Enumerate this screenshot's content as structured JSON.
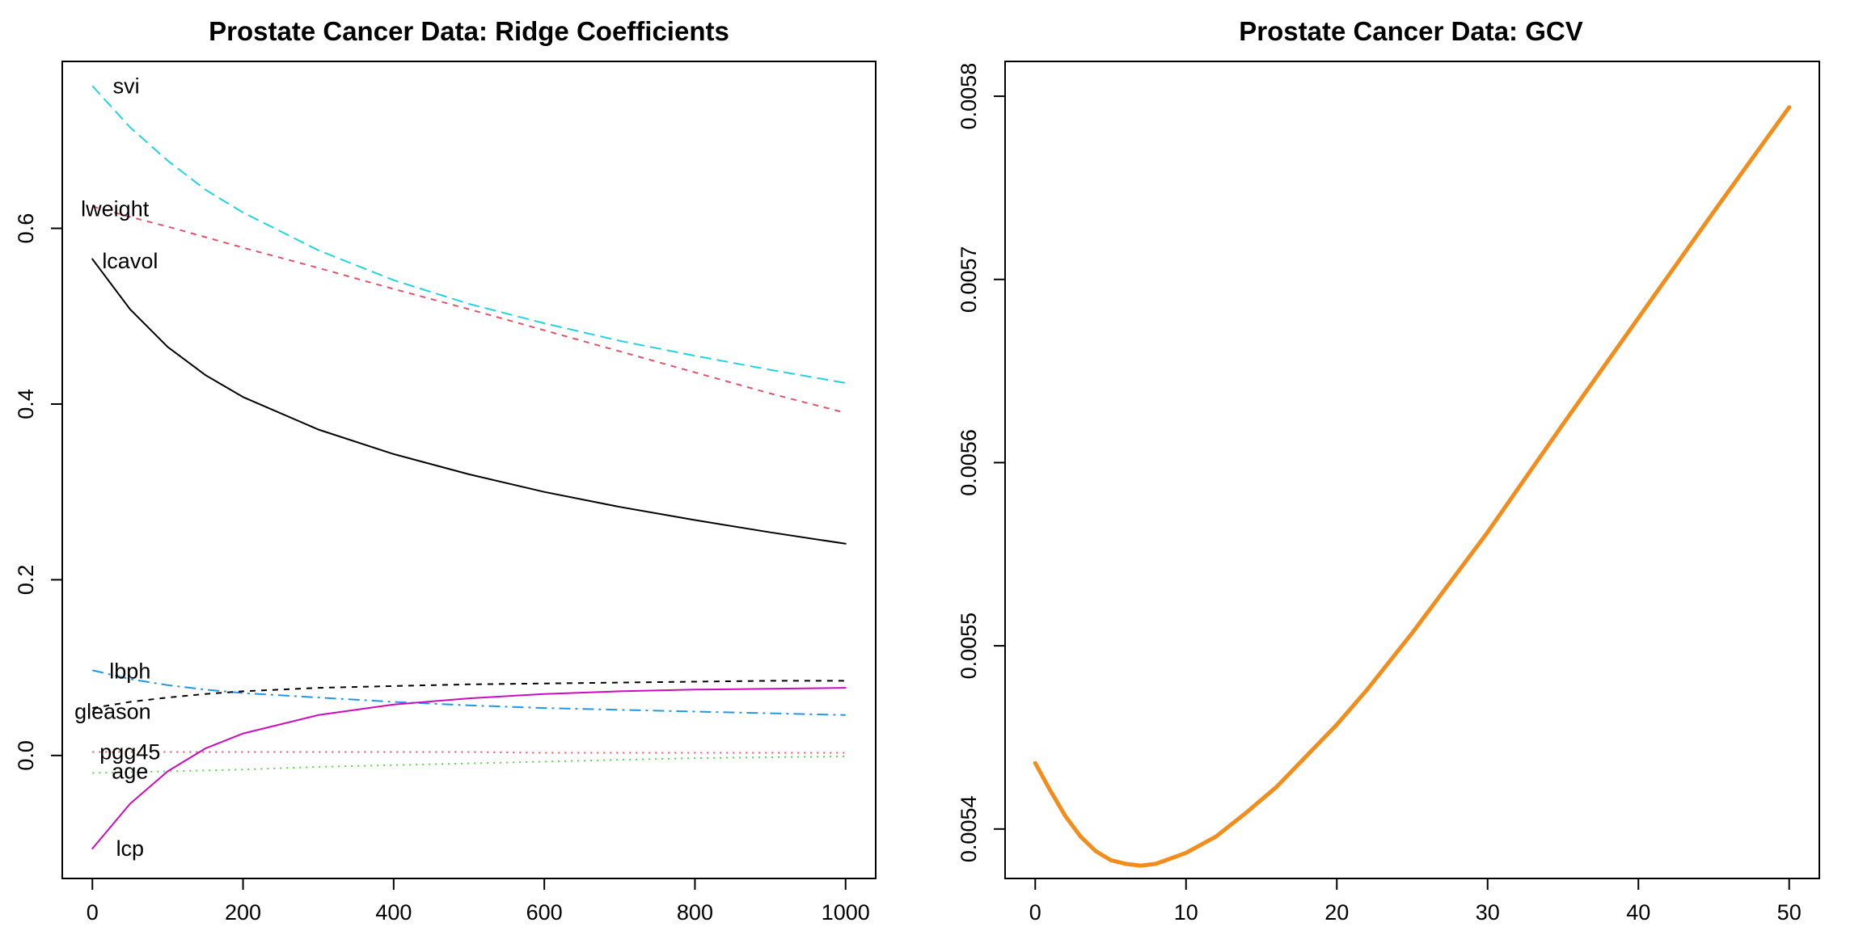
{
  "chart_data": [
    {
      "type": "line",
      "title": "Prostate Cancer Data: Ridge Coefficients",
      "xlabel": "",
      "ylabel": "",
      "xlim": [
        -40,
        1040
      ],
      "ylim": [
        -0.14,
        0.79
      ],
      "xticks": [
        "0",
        "200",
        "400",
        "600",
        "800",
        "1000"
      ],
      "yticks": [
        "0.0",
        "0.2",
        "0.4",
        "0.6"
      ],
      "xtick_values": [
        0,
        200,
        400,
        600,
        800,
        1000
      ],
      "ytick_values": [
        0.0,
        0.2,
        0.4,
        0.6
      ],
      "x": [
        0,
        50,
        100,
        150,
        200,
        300,
        400,
        500,
        600,
        700,
        800,
        900,
        1000
      ],
      "series": [
        {
          "name": "svi",
          "color": "#22D3E0",
          "dash": "14,7",
          "values": [
            0.762,
            0.715,
            0.677,
            0.644,
            0.618,
            0.575,
            0.541,
            0.514,
            0.492,
            0.472,
            0.455,
            0.439,
            0.424
          ],
          "label_at": [
            45,
            0.762
          ]
        },
        {
          "name": "lweight",
          "color": "#DF536B",
          "dash": "7,7",
          "values": [
            0.625,
            0.613,
            0.602,
            0.59,
            0.578,
            0.555,
            0.531,
            0.508,
            0.484,
            0.46,
            0.436,
            0.412,
            0.39
          ],
          "label_at": [
            30,
            0.622
          ]
        },
        {
          "name": "lcavol",
          "color": "#000000",
          "dash": "",
          "values": [
            0.565,
            0.508,
            0.465,
            0.433,
            0.408,
            0.371,
            0.343,
            0.32,
            0.3,
            0.283,
            0.268,
            0.254,
            0.241
          ],
          "label_at": [
            50,
            0.563
          ]
        },
        {
          "name": "lbph",
          "color": "#2297E6",
          "dash": "14,6,3,6",
          "values": [
            0.097,
            0.087,
            0.08,
            0.075,
            0.071,
            0.066,
            0.061,
            0.057,
            0.054,
            0.052,
            0.05,
            0.048,
            0.046
          ],
          "label_at": [
            50,
            0.096
          ]
        },
        {
          "name": "gleason",
          "color": "#000000",
          "dash": "7,7",
          "values": [
            0.054,
            0.061,
            0.066,
            0.07,
            0.073,
            0.077,
            0.079,
            0.081,
            0.082,
            0.083,
            0.084,
            0.085,
            0.085
          ],
          "label_at": [
            27,
            0.05
          ]
        },
        {
          "name": "pgg45",
          "color": "#DF536B",
          "dash": "2,6",
          "values": [
            0.004,
            0.004,
            0.004,
            0.004,
            0.004,
            0.004,
            0.004,
            0.004,
            0.003,
            0.003,
            0.003,
            0.003,
            0.003
          ],
          "label_at": [
            50,
            0.004
          ]
        },
        {
          "name": "age",
          "color": "#61D04F",
          "dash": "2,6",
          "values": [
            -0.02,
            -0.019,
            -0.018,
            -0.017,
            -0.016,
            -0.013,
            -0.011,
            -0.009,
            -0.007,
            -0.005,
            -0.003,
            -0.002,
            -0.001
          ],
          "label_at": [
            50,
            -0.018
          ]
        },
        {
          "name": "lcp",
          "color": "#CD0BBC",
          "dash": "",
          "values": [
            -0.106,
            -0.055,
            -0.018,
            0.008,
            0.025,
            0.046,
            0.058,
            0.065,
            0.07,
            0.073,
            0.075,
            0.076,
            0.077
          ],
          "label_at": [
            50,
            -0.106
          ]
        }
      ]
    },
    {
      "type": "line",
      "title": "Prostate Cancer Data: GCV",
      "xlabel": "",
      "ylabel": "",
      "xlim": [
        -2,
        52
      ],
      "ylim": [
        0.005373,
        0.005819
      ],
      "xticks": [
        "0",
        "10",
        "20",
        "30",
        "40",
        "50"
      ],
      "yticks": [
        "0.0054",
        "0.0055",
        "0.0056",
        "0.0057",
        "0.0058"
      ],
      "xtick_values": [
        0,
        10,
        20,
        30,
        40,
        50
      ],
      "ytick_values": [
        0.0054,
        0.0055,
        0.0056,
        0.0057,
        0.0058
      ],
      "series": [
        {
          "name": "",
          "color": "#F28C1A",
          "dash": "",
          "x": [
            0,
            1,
            2,
            3,
            4,
            5,
            6,
            7,
            8,
            9,
            10,
            12,
            14,
            16,
            18,
            20,
            22,
            25,
            30,
            35,
            40,
            45,
            50
          ],
          "values": [
            0.005436,
            0.005421,
            0.005407,
            0.005396,
            0.005388,
            0.005383,
            0.005381,
            0.00538,
            0.005381,
            0.005384,
            0.005387,
            0.005396,
            0.005409,
            0.005423,
            0.00544,
            0.005457,
            0.005476,
            0.005507,
            0.005562,
            0.005621,
            0.005679,
            0.005737,
            0.005794
          ]
        }
      ]
    }
  ]
}
